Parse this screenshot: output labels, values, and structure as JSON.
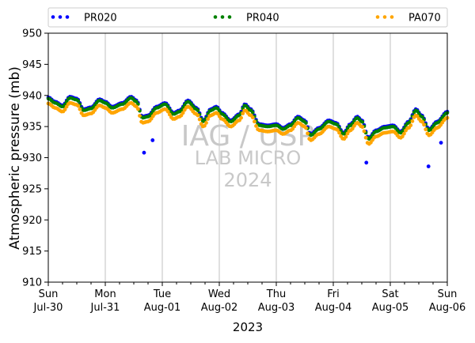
{
  "chart_data": {
    "type": "scatter",
    "xlabel": "2023",
    "ylabel": "Atmospheric pressure (mb)",
    "ylim": [
      910,
      950
    ],
    "xlim": [
      "2023-07-30",
      "2023-08-06"
    ],
    "x_ticks": [
      {
        "day": "Sun",
        "date": "Jul-30"
      },
      {
        "day": "Mon",
        "date": "Jul-31"
      },
      {
        "day": "Tue",
        "date": "Aug-01"
      },
      {
        "day": "Wed",
        "date": "Aug-02"
      },
      {
        "day": "Thu",
        "date": "Aug-03"
      },
      {
        "day": "Fri",
        "date": "Aug-04"
      },
      {
        "day": "Sat",
        "date": "Aug-05"
      },
      {
        "day": "Sun",
        "date": "Aug-06"
      }
    ],
    "y_ticks": [
      "910",
      "915",
      "920",
      "925",
      "930",
      "935",
      "940",
      "945",
      "950"
    ],
    "grid": "vertical",
    "legend_position": "top",
    "watermark": [
      "IAG / USP",
      "LAB MICRO",
      "2024"
    ],
    "series": [
      {
        "name": "PR020",
        "color": "#0000ff",
        "offset": 0.2,
        "outliers": [
          [
            1.68,
            930.8
          ],
          [
            1.83,
            932.8
          ],
          [
            5.58,
            929.2
          ],
          [
            6.67,
            928.6
          ],
          [
            6.89,
            932.4
          ]
        ]
      },
      {
        "name": "PR040",
        "color": "#008000",
        "offset": 0.0,
        "outliers": []
      },
      {
        "name": "PA070",
        "color": "#ffa500",
        "offset": -0.8,
        "outliers": []
      }
    ],
    "base_curve": [
      [
        0.0,
        939.5
      ],
      [
        0.12,
        938.8
      ],
      [
        0.25,
        938.2
      ],
      [
        0.38,
        939.6
      ],
      [
        0.5,
        939.3
      ],
      [
        0.62,
        937.6
      ],
      [
        0.75,
        937.9
      ],
      [
        0.9,
        939.2
      ],
      [
        1.0,
        938.8
      ],
      [
        1.12,
        938.0
      ],
      [
        1.3,
        938.6
      ],
      [
        1.45,
        939.6
      ],
      [
        1.55,
        939.0
      ],
      [
        1.65,
        936.4
      ],
      [
        1.75,
        936.6
      ],
      [
        1.9,
        938.0
      ],
      [
        2.05,
        938.6
      ],
      [
        2.2,
        937.0
      ],
      [
        2.3,
        937.4
      ],
      [
        2.45,
        939.0
      ],
      [
        2.6,
        937.8
      ],
      [
        2.72,
        935.8
      ],
      [
        2.85,
        937.6
      ],
      [
        2.95,
        938.0
      ],
      [
        3.05,
        937.0
      ],
      [
        3.2,
        935.8
      ],
      [
        3.35,
        936.8
      ],
      [
        3.45,
        938.4
      ],
      [
        3.55,
        937.6
      ],
      [
        3.7,
        935.2
      ],
      [
        3.85,
        935.0
      ],
      [
        4.0,
        935.2
      ],
      [
        4.12,
        934.6
      ],
      [
        4.25,
        935.2
      ],
      [
        4.38,
        936.4
      ],
      [
        4.5,
        935.8
      ],
      [
        4.6,
        933.6
      ],
      [
        4.75,
        934.6
      ],
      [
        4.92,
        935.8
      ],
      [
        5.05,
        935.4
      ],
      [
        5.18,
        933.8
      ],
      [
        5.3,
        935.2
      ],
      [
        5.42,
        936.4
      ],
      [
        5.5,
        935.8
      ],
      [
        5.62,
        933.0
      ],
      [
        5.75,
        934.2
      ],
      [
        5.9,
        934.8
      ],
      [
        6.05,
        935.0
      ],
      [
        6.18,
        934.0
      ],
      [
        6.32,
        935.6
      ],
      [
        6.45,
        937.6
      ],
      [
        6.55,
        936.6
      ],
      [
        6.68,
        934.4
      ],
      [
        6.82,
        935.6
      ],
      [
        7.0,
        937.2
      ]
    ]
  }
}
